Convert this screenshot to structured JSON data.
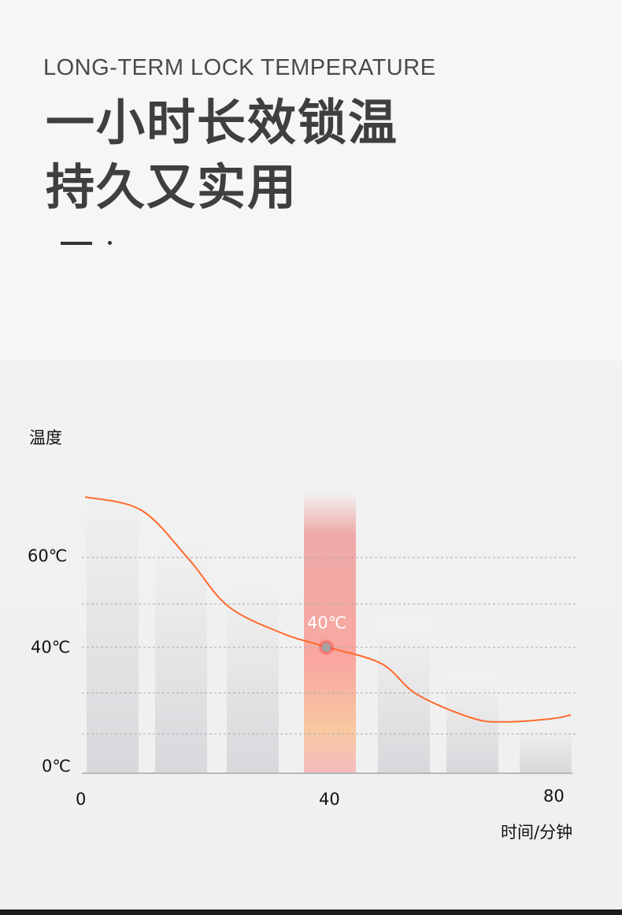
{
  "header": {
    "subtitle": "LONG-TERM LOCK TEMPERATURE",
    "title_line1": "一小时长效锁温",
    "title_line2": "持久又实用"
  },
  "chart_data": {
    "type": "line",
    "ylabel": "温度",
    "xlabel": "时间/分钟",
    "y_ticks": [
      "60℃",
      "40℃",
      "0℃"
    ],
    "x_ticks": [
      "0",
      "40",
      "80"
    ],
    "xlim": [
      0,
      80
    ],
    "grid": true,
    "line_color": "#ff6a2b",
    "highlight": {
      "x": 40,
      "y": 40,
      "label": "40℃",
      "color": "#f6a0a0"
    },
    "series": [
      {
        "x": [
          0,
          9.3,
          17.1,
          23.6,
          32.7,
          40,
          48.8,
          54.7,
          63.8,
          69,
          76.8,
          80
        ],
        "y": [
          73.5,
          70.5,
          59.6,
          49.1,
          43,
          40,
          34.8,
          25,
          17.5,
          16.3,
          17.3,
          18.5
        ]
      }
    ]
  }
}
